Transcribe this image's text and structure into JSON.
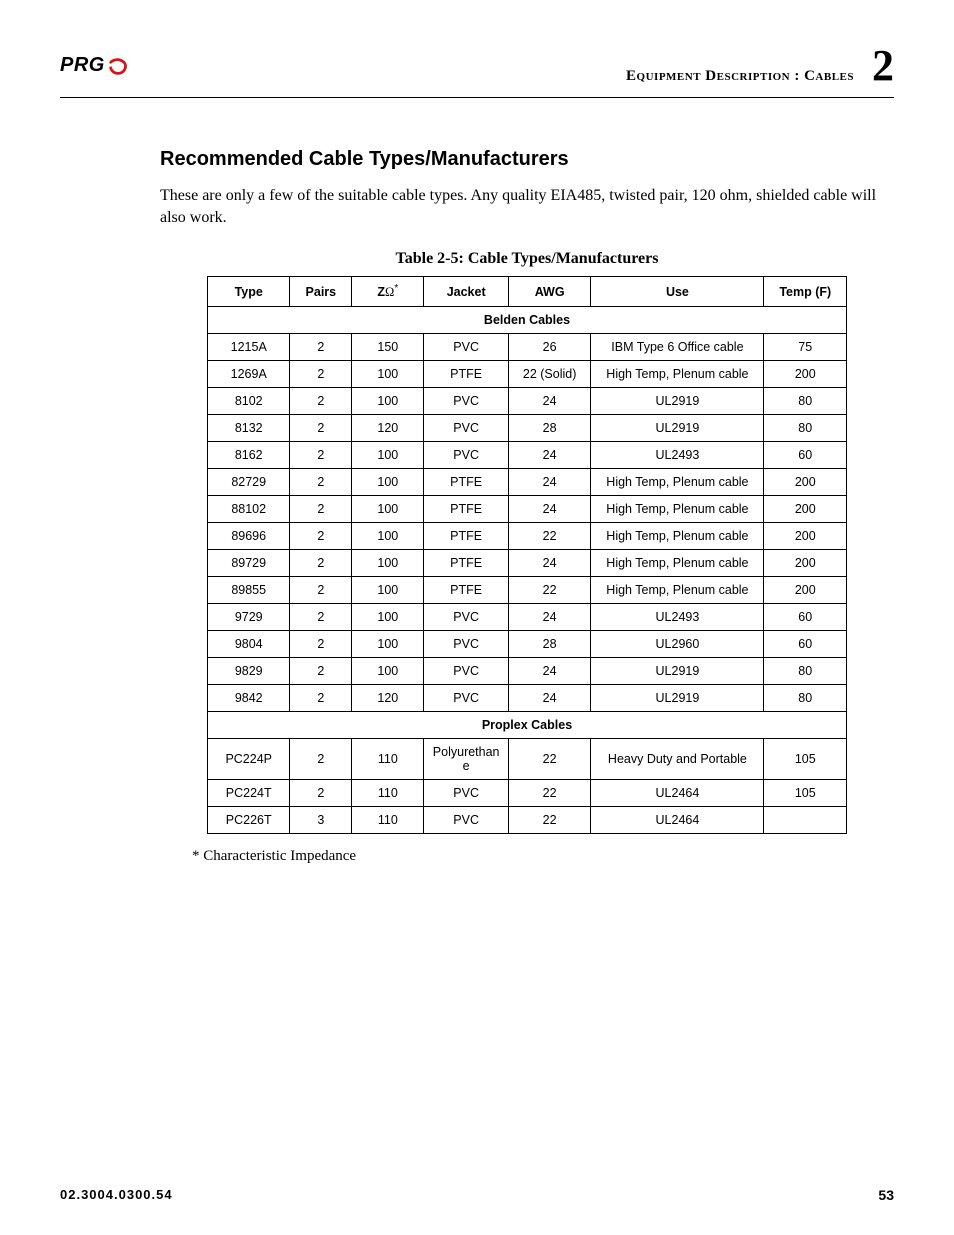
{
  "header": {
    "logo_text": "PRG",
    "chapter_path": "Equipment Description : Cables",
    "chapter_number": "2"
  },
  "section": {
    "heading": "Recommended Cable Types/Manufacturers",
    "intro": "These are only a few of the suitable cable types. Any quality EIA485, twisted pair, 120 ohm, shielded cable will also work."
  },
  "table": {
    "caption": "Table 2-5: Cable Types/Manufacturers",
    "columns": {
      "type": "Type",
      "pairs": "Pairs",
      "z_prefix": "Z",
      "z_omega": "Ω",
      "z_star": "*",
      "jacket": "Jacket",
      "awg": "AWG",
      "use": "Use",
      "temp": "Temp (F)"
    },
    "section1": "Belden Cables",
    "belden": [
      {
        "type": "1215A",
        "pairs": "2",
        "z": "150",
        "jacket": "PVC",
        "awg": "26",
        "use": "IBM Type 6 Office cable",
        "temp": "75"
      },
      {
        "type": "1269A",
        "pairs": "2",
        "z": "100",
        "jacket": "PTFE",
        "awg": "22 (Solid)",
        "use": "High Temp, Plenum cable",
        "temp": "200"
      },
      {
        "type": "8102",
        "pairs": "2",
        "z": "100",
        "jacket": "PVC",
        "awg": "24",
        "use": "UL2919",
        "temp": "80"
      },
      {
        "type": "8132",
        "pairs": "2",
        "z": "120",
        "jacket": "PVC",
        "awg": "28",
        "use": "UL2919",
        "temp": "80"
      },
      {
        "type": "8162",
        "pairs": "2",
        "z": "100",
        "jacket": "PVC",
        "awg": "24",
        "use": "UL2493",
        "temp": "60"
      },
      {
        "type": "82729",
        "pairs": "2",
        "z": "100",
        "jacket": "PTFE",
        "awg": "24",
        "use": "High Temp, Plenum cable",
        "temp": "200"
      },
      {
        "type": "88102",
        "pairs": "2",
        "z": "100",
        "jacket": "PTFE",
        "awg": "24",
        "use": "High Temp, Plenum cable",
        "temp": "200"
      },
      {
        "type": "89696",
        "pairs": "2",
        "z": "100",
        "jacket": "PTFE",
        "awg": "22",
        "use": "High Temp, Plenum cable",
        "temp": "200"
      },
      {
        "type": "89729",
        "pairs": "2",
        "z": "100",
        "jacket": "PTFE",
        "awg": "24",
        "use": "High Temp, Plenum cable",
        "temp": "200"
      },
      {
        "type": "89855",
        "pairs": "2",
        "z": "100",
        "jacket": "PTFE",
        "awg": "22",
        "use": "High Temp, Plenum cable",
        "temp": "200"
      },
      {
        "type": "9729",
        "pairs": "2",
        "z": "100",
        "jacket": "PVC",
        "awg": "24",
        "use": "UL2493",
        "temp": "60"
      },
      {
        "type": "9804",
        "pairs": "2",
        "z": "100",
        "jacket": "PVC",
        "awg": "28",
        "use": "UL2960",
        "temp": "60"
      },
      {
        "type": "9829",
        "pairs": "2",
        "z": "100",
        "jacket": "PVC",
        "awg": "24",
        "use": "UL2919",
        "temp": "80"
      },
      {
        "type": "9842",
        "pairs": "2",
        "z": "120",
        "jacket": "PVC",
        "awg": "24",
        "use": "UL2919",
        "temp": "80"
      }
    ],
    "section2": "Proplex Cables",
    "proplex": [
      {
        "type": "PC224P",
        "pairs": "2",
        "z": "110",
        "jacket": "Polyurethane",
        "awg": "22",
        "use": "Heavy Duty and Portable",
        "temp": "105"
      },
      {
        "type": "PC224T",
        "pairs": "2",
        "z": "110",
        "jacket": "PVC",
        "awg": "22",
        "use": "UL2464",
        "temp": "105"
      },
      {
        "type": "PC226T",
        "pairs": "3",
        "z": "110",
        "jacket": "PVC",
        "awg": "22",
        "use": "UL2464",
        "temp": ""
      }
    ],
    "footnote": "* Characteristic Impedance"
  },
  "footer": {
    "doc_id": "02.3004.0300.54",
    "page": "53"
  }
}
